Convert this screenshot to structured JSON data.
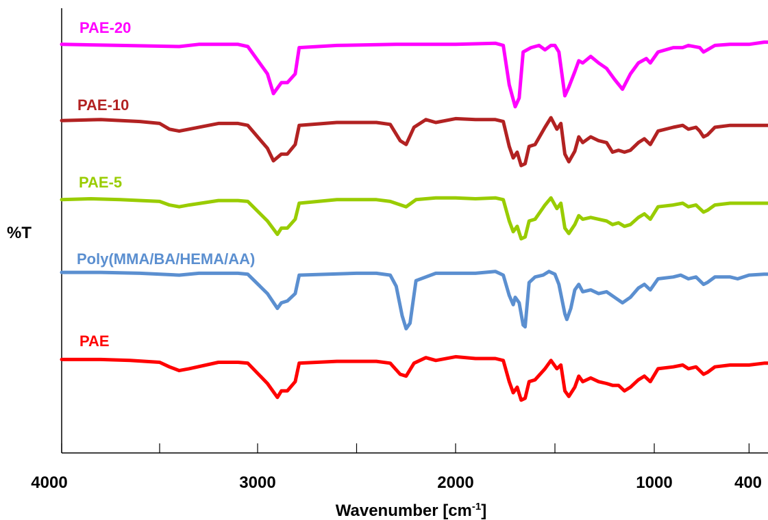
{
  "chart_data": {
    "type": "line",
    "title": "",
    "xlabel": "Wavenumber [cm",
    "xlabel_sup": "-1",
    "xlabel_suffix": "]",
    "ylabel": "%T",
    "x_axis": "reversed",
    "xlim": [
      4000,
      400
    ],
    "xticks": [
      {
        "value": 4000,
        "label": "4000"
      },
      {
        "value": 3000,
        "label": "3000"
      },
      {
        "value": 2000,
        "label": "2000"
      },
      {
        "value": 1000,
        "label": "1000"
      },
      {
        "value": 400,
        "label": "400"
      }
    ],
    "grid": false,
    "legend": "inline labels above each trace",
    "series": [
      {
        "name": "PAE-20",
        "color": "#FF00FF",
        "points": [
          [
            4000,
            97
          ],
          [
            3700,
            96
          ],
          [
            3400,
            95
          ],
          [
            3300,
            97
          ],
          [
            3100,
            97
          ],
          [
            3050,
            95
          ],
          [
            2950,
            70
          ],
          [
            2920,
            52
          ],
          [
            2880,
            62
          ],
          [
            2850,
            62
          ],
          [
            2810,
            70
          ],
          [
            2790,
            94
          ],
          [
            2600,
            96
          ],
          [
            2300,
            97
          ],
          [
            2000,
            97
          ],
          [
            1800,
            98
          ],
          [
            1760,
            96
          ],
          [
            1730,
            60
          ],
          [
            1700,
            40
          ],
          [
            1680,
            48
          ],
          [
            1660,
            90
          ],
          [
            1620,
            94
          ],
          [
            1580,
            96
          ],
          [
            1550,
            92
          ],
          [
            1520,
            96
          ],
          [
            1500,
            96
          ],
          [
            1480,
            90
          ],
          [
            1450,
            50
          ],
          [
            1430,
            58
          ],
          [
            1400,
            72
          ],
          [
            1380,
            82
          ],
          [
            1360,
            80
          ],
          [
            1320,
            86
          ],
          [
            1280,
            80
          ],
          [
            1240,
            75
          ],
          [
            1200,
            65
          ],
          [
            1160,
            56
          ],
          [
            1120,
            70
          ],
          [
            1080,
            80
          ],
          [
            1040,
            84
          ],
          [
            1020,
            80
          ],
          [
            980,
            90
          ],
          [
            900,
            94
          ],
          [
            850,
            94
          ],
          [
            820,
            96
          ],
          [
            760,
            94
          ],
          [
            740,
            90
          ],
          [
            720,
            92
          ],
          [
            680,
            96
          ],
          [
            600,
            97
          ],
          [
            500,
            97
          ],
          [
            420,
            99
          ],
          [
            400,
            99
          ]
        ]
      },
      {
        "name": "PAE-10",
        "color": "#B22222",
        "points": [
          [
            4000,
            97
          ],
          [
            3800,
            98
          ],
          [
            3600,
            96
          ],
          [
            3500,
            94
          ],
          [
            3450,
            88
          ],
          [
            3400,
            86
          ],
          [
            3350,
            88
          ],
          [
            3200,
            94
          ],
          [
            3100,
            94
          ],
          [
            3050,
            92
          ],
          [
            2950,
            68
          ],
          [
            2920,
            55
          ],
          [
            2880,
            62
          ],
          [
            2850,
            62
          ],
          [
            2810,
            72
          ],
          [
            2790,
            92
          ],
          [
            2600,
            95
          ],
          [
            2400,
            95
          ],
          [
            2330,
            93
          ],
          [
            2280,
            76
          ],
          [
            2250,
            72
          ],
          [
            2210,
            90
          ],
          [
            2150,
            98
          ],
          [
            2100,
            95
          ],
          [
            2000,
            99
          ],
          [
            1900,
            98
          ],
          [
            1800,
            98
          ],
          [
            1760,
            96
          ],
          [
            1730,
            70
          ],
          [
            1710,
            58
          ],
          [
            1690,
            64
          ],
          [
            1670,
            50
          ],
          [
            1650,
            52
          ],
          [
            1630,
            70
          ],
          [
            1600,
            72
          ],
          [
            1550,
            90
          ],
          [
            1520,
            100
          ],
          [
            1490,
            88
          ],
          [
            1470,
            94
          ],
          [
            1450,
            62
          ],
          [
            1430,
            54
          ],
          [
            1400,
            65
          ],
          [
            1380,
            80
          ],
          [
            1360,
            74
          ],
          [
            1320,
            80
          ],
          [
            1280,
            76
          ],
          [
            1240,
            74
          ],
          [
            1210,
            64
          ],
          [
            1180,
            66
          ],
          [
            1150,
            64
          ],
          [
            1120,
            66
          ],
          [
            1080,
            74
          ],
          [
            1050,
            78
          ],
          [
            1020,
            72
          ],
          [
            980,
            86
          ],
          [
            900,
            90
          ],
          [
            850,
            92
          ],
          [
            820,
            88
          ],
          [
            780,
            90
          ],
          [
            760,
            86
          ],
          [
            740,
            80
          ],
          [
            720,
            82
          ],
          [
            680,
            90
          ],
          [
            600,
            92
          ],
          [
            500,
            92
          ],
          [
            420,
            92
          ],
          [
            400,
            92
          ]
        ]
      },
      {
        "name": "PAE-5",
        "color": "#99CC00",
        "points": [
          [
            4000,
            94
          ],
          [
            3850,
            95
          ],
          [
            3700,
            94
          ],
          [
            3500,
            92
          ],
          [
            3450,
            88
          ],
          [
            3400,
            86
          ],
          [
            3350,
            88
          ],
          [
            3200,
            93
          ],
          [
            3100,
            93
          ],
          [
            3050,
            92
          ],
          [
            2950,
            70
          ],
          [
            2900,
            55
          ],
          [
            2880,
            62
          ],
          [
            2850,
            62
          ],
          [
            2810,
            72
          ],
          [
            2790,
            90
          ],
          [
            2600,
            94
          ],
          [
            2400,
            94
          ],
          [
            2330,
            92
          ],
          [
            2250,
            86
          ],
          [
            2200,
            94
          ],
          [
            2100,
            96
          ],
          [
            2000,
            96
          ],
          [
            1900,
            95
          ],
          [
            1800,
            96
          ],
          [
            1760,
            94
          ],
          [
            1730,
            70
          ],
          [
            1710,
            58
          ],
          [
            1690,
            64
          ],
          [
            1670,
            50
          ],
          [
            1650,
            52
          ],
          [
            1630,
            70
          ],
          [
            1600,
            72
          ],
          [
            1550,
            88
          ],
          [
            1520,
            96
          ],
          [
            1490,
            84
          ],
          [
            1470,
            90
          ],
          [
            1450,
            62
          ],
          [
            1430,
            56
          ],
          [
            1400,
            66
          ],
          [
            1380,
            76
          ],
          [
            1360,
            72
          ],
          [
            1320,
            74
          ],
          [
            1280,
            72
          ],
          [
            1240,
            70
          ],
          [
            1210,
            66
          ],
          [
            1180,
            68
          ],
          [
            1150,
            64
          ],
          [
            1120,
            66
          ],
          [
            1080,
            74
          ],
          [
            1050,
            78
          ],
          [
            1020,
            72
          ],
          [
            980,
            86
          ],
          [
            900,
            88
          ],
          [
            850,
            90
          ],
          [
            820,
            86
          ],
          [
            780,
            88
          ],
          [
            760,
            84
          ],
          [
            740,
            80
          ],
          [
            720,
            82
          ],
          [
            680,
            88
          ],
          [
            600,
            90
          ],
          [
            500,
            90
          ],
          [
            420,
            90
          ],
          [
            400,
            90
          ]
        ]
      },
      {
        "name": "Poly(MMA/BA/HEMA/AA)",
        "color": "#5B8FD0",
        "points": [
          [
            4000,
            97
          ],
          [
            3800,
            97
          ],
          [
            3600,
            96
          ],
          [
            3400,
            94
          ],
          [
            3300,
            96
          ],
          [
            3100,
            96
          ],
          [
            3050,
            95
          ],
          [
            2950,
            74
          ],
          [
            2900,
            58
          ],
          [
            2880,
            64
          ],
          [
            2850,
            66
          ],
          [
            2810,
            74
          ],
          [
            2790,
            94
          ],
          [
            2500,
            96
          ],
          [
            2400,
            96
          ],
          [
            2330,
            94
          ],
          [
            2300,
            82
          ],
          [
            2270,
            50
          ],
          [
            2250,
            36
          ],
          [
            2230,
            42
          ],
          [
            2200,
            88
          ],
          [
            2100,
            96
          ],
          [
            1900,
            96
          ],
          [
            1800,
            98
          ],
          [
            1760,
            94
          ],
          [
            1730,
            72
          ],
          [
            1710,
            62
          ],
          [
            1700,
            70
          ],
          [
            1680,
            64
          ],
          [
            1660,
            40
          ],
          [
            1650,
            38
          ],
          [
            1630,
            86
          ],
          [
            1600,
            92
          ],
          [
            1560,
            94
          ],
          [
            1530,
            98
          ],
          [
            1500,
            95
          ],
          [
            1480,
            84
          ],
          [
            1450,
            52
          ],
          [
            1440,
            46
          ],
          [
            1420,
            58
          ],
          [
            1400,
            78
          ],
          [
            1380,
            84
          ],
          [
            1360,
            76
          ],
          [
            1320,
            78
          ],
          [
            1280,
            74
          ],
          [
            1240,
            76
          ],
          [
            1200,
            70
          ],
          [
            1160,
            64
          ],
          [
            1120,
            70
          ],
          [
            1080,
            80
          ],
          [
            1050,
            84
          ],
          [
            1020,
            78
          ],
          [
            980,
            90
          ],
          [
            900,
            92
          ],
          [
            860,
            94
          ],
          [
            820,
            90
          ],
          [
            780,
            92
          ],
          [
            760,
            88
          ],
          [
            740,
            84
          ],
          [
            720,
            86
          ],
          [
            680,
            92
          ],
          [
            600,
            92
          ],
          [
            560,
            90
          ],
          [
            500,
            94
          ],
          [
            420,
            95
          ],
          [
            400,
            95
          ]
        ]
      },
      {
        "name": "PAE",
        "color": "#FF0000",
        "points": [
          [
            4000,
            96
          ],
          [
            3800,
            96
          ],
          [
            3650,
            95
          ],
          [
            3500,
            93
          ],
          [
            3450,
            88
          ],
          [
            3400,
            84
          ],
          [
            3350,
            86
          ],
          [
            3200,
            93
          ],
          [
            3100,
            93
          ],
          [
            3050,
            92
          ],
          [
            2950,
            70
          ],
          [
            2900,
            55
          ],
          [
            2880,
            62
          ],
          [
            2850,
            62
          ],
          [
            2810,
            72
          ],
          [
            2790,
            92
          ],
          [
            2600,
            94
          ],
          [
            2400,
            94
          ],
          [
            2330,
            92
          ],
          [
            2280,
            80
          ],
          [
            2250,
            78
          ],
          [
            2210,
            92
          ],
          [
            2150,
            98
          ],
          [
            2100,
            95
          ],
          [
            2000,
            99
          ],
          [
            1900,
            97
          ],
          [
            1800,
            97
          ],
          [
            1760,
            95
          ],
          [
            1730,
            72
          ],
          [
            1710,
            60
          ],
          [
            1690,
            66
          ],
          [
            1670,
            52
          ],
          [
            1650,
            54
          ],
          [
            1630,
            72
          ],
          [
            1600,
            74
          ],
          [
            1550,
            86
          ],
          [
            1520,
            95
          ],
          [
            1490,
            86
          ],
          [
            1470,
            90
          ],
          [
            1450,
            62
          ],
          [
            1430,
            56
          ],
          [
            1400,
            66
          ],
          [
            1380,
            78
          ],
          [
            1360,
            72
          ],
          [
            1320,
            76
          ],
          [
            1280,
            72
          ],
          [
            1240,
            70
          ],
          [
            1210,
            68
          ],
          [
            1180,
            68
          ],
          [
            1150,
            62
          ],
          [
            1120,
            66
          ],
          [
            1080,
            74
          ],
          [
            1050,
            78
          ],
          [
            1020,
            72
          ],
          [
            980,
            86
          ],
          [
            900,
            88
          ],
          [
            850,
            90
          ],
          [
            820,
            86
          ],
          [
            780,
            88
          ],
          [
            760,
            84
          ],
          [
            740,
            80
          ],
          [
            720,
            82
          ],
          [
            680,
            88
          ],
          [
            600,
            90
          ],
          [
            500,
            90
          ],
          [
            420,
            92
          ],
          [
            400,
            92
          ]
        ]
      }
    ]
  }
}
